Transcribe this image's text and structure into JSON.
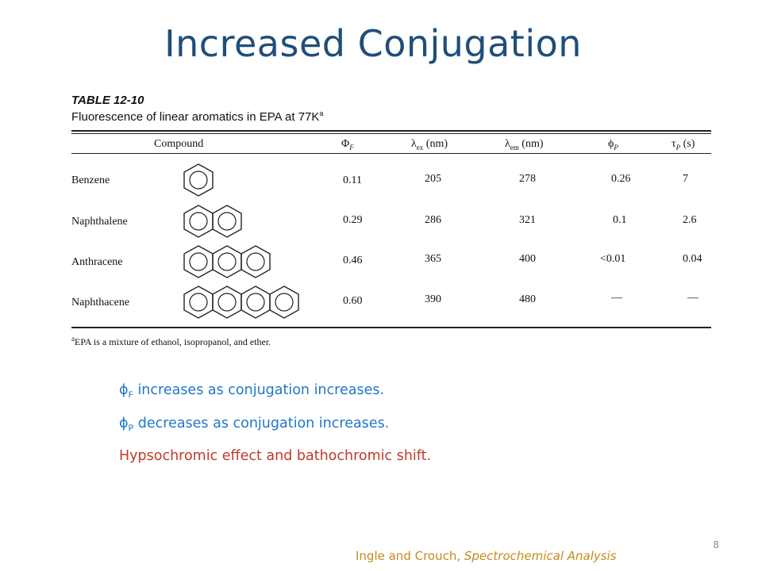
{
  "slide": {
    "title": "Increased Conjugation",
    "page_number": "8"
  },
  "table": {
    "caption": "TABLE 12-10",
    "description": "Fluorescence of linear aromatics in EPA at 77K",
    "description_sup": "a",
    "headers": {
      "compound": "Compound",
      "phi_f": "Φ",
      "phi_f_sub": "F",
      "lambda_ex": "λ",
      "lambda_ex_sub": "ex",
      "lambda_ex_unit": " (nm)",
      "lambda_em": "λ",
      "lambda_em_sub": "em",
      "lambda_em_unit": " (nm)",
      "phi_p": "ϕ",
      "phi_p_sub": "P",
      "tau_p": "τ",
      "tau_p_sub": "P",
      "tau_p_unit": " (s)"
    },
    "rows": [
      {
        "compound": "Benzene",
        "phi_f": "0.11",
        "lambda_ex": "205",
        "lambda_em": "278",
        "phi_p": "0.26",
        "tau_p": "7",
        "rings": 1
      },
      {
        "compound": "Naphthalene",
        "phi_f": "0.29",
        "lambda_ex": "286",
        "lambda_em": "321",
        "phi_p": "0.1",
        "tau_p": "2.6",
        "rings": 2
      },
      {
        "compound": "Anthracene",
        "phi_f": "0.46",
        "lambda_ex": "365",
        "lambda_em": "400",
        "phi_p": "<0.01",
        "tau_p": "0.04",
        "rings": 3
      },
      {
        "compound": "Naphthacene",
        "phi_f": "0.60",
        "lambda_ex": "390",
        "lambda_em": "480",
        "phi_p": "—",
        "tau_p": "—",
        "rings": 4
      }
    ],
    "footnote_sup": "a",
    "footnote": "EPA is a mixture of ethanol, isopropanol, and ether."
  },
  "bullets": {
    "b1_symbol": "ϕ",
    "b1_sub": "F",
    "b1_text": " increases as conjugation increases.",
    "b2_symbol": "ϕ",
    "b2_sub": "P",
    "b2_text": " decreases as conjugation increases.",
    "b3_text": "Hypsochromic effect and bathochromic shift."
  },
  "citation": {
    "authors": "Ingle and Crouch, ",
    "work": "Spectrochemical Analysis"
  },
  "colors": {
    "title": "#1f4e79",
    "bullet_blue": "#1f77c8",
    "bullet_red": "#c0392b",
    "citation": "#c68a1d"
  }
}
